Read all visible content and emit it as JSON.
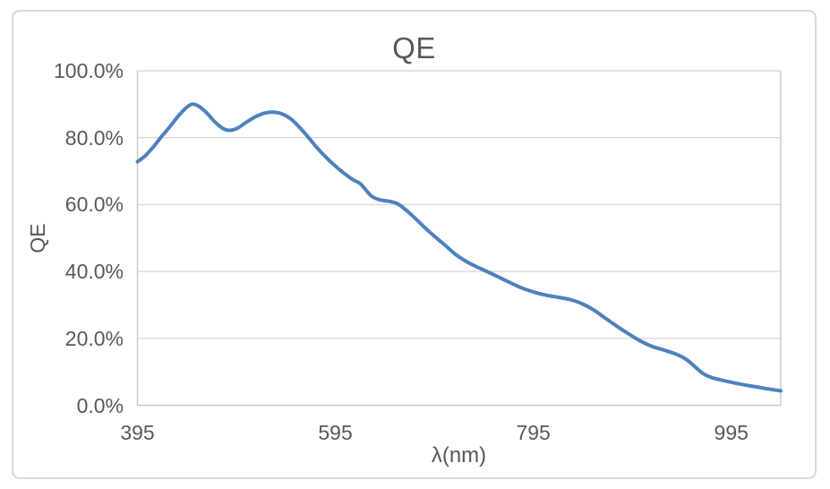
{
  "chart": {
    "title": "QE",
    "colors": {
      "line": "#4E81BD",
      "gridline": "#D9D9D9",
      "axis_line": "#C9C9C9",
      "text": "#595959",
      "frame_border": "#D9D9D9",
      "background": "#FFFFFF"
    },
    "x_axis": {
      "title": "λ(nm)",
      "min": 395,
      "max": 1045,
      "ticks": [
        {
          "value": 395,
          "label": "395"
        },
        {
          "value": 595,
          "label": "595"
        },
        {
          "value": 795,
          "label": "795"
        },
        {
          "value": 995,
          "label": "995"
        }
      ]
    },
    "y_axis": {
      "title": "QE",
      "min": 0,
      "max": 100,
      "ticks": [
        {
          "value": 0,
          "label": "0.0%"
        },
        {
          "value": 20,
          "label": "20.0%"
        },
        {
          "value": 40,
          "label": "40.0%"
        },
        {
          "value": 60,
          "label": "60.0%"
        },
        {
          "value": 80,
          "label": "80.0%"
        },
        {
          "value": 100,
          "label": "100.0%"
        }
      ]
    }
  },
  "chart_data": {
    "type": "line",
    "title": "QE",
    "xlabel": "λ(nm)",
    "ylabel": "QE",
    "xlim": [
      395,
      1045
    ],
    "ylim_percent": [
      0,
      100
    ],
    "grid": "horizontal",
    "legend": "none",
    "line_style": "smooth",
    "markers": false,
    "series": [
      {
        "name": "QE",
        "color": "#4E81BD",
        "x_unit": "nm",
        "y_unit": "percent",
        "points": [
          [
            395,
            72.8
          ],
          [
            403,
            74.6
          ],
          [
            411,
            77.2
          ],
          [
            419,
            80.2
          ],
          [
            427,
            83.0
          ],
          [
            435,
            86.0
          ],
          [
            443,
            88.6
          ],
          [
            450,
            90.0
          ],
          [
            457,
            89.4
          ],
          [
            465,
            87.4
          ],
          [
            473,
            84.8
          ],
          [
            481,
            82.8
          ],
          [
            488,
            82.2
          ],
          [
            496,
            82.8
          ],
          [
            505,
            84.6
          ],
          [
            514,
            86.2
          ],
          [
            523,
            87.3
          ],
          [
            532,
            87.6
          ],
          [
            541,
            87.1
          ],
          [
            550,
            85.6
          ],
          [
            559,
            83.0
          ],
          [
            568,
            80.0
          ],
          [
            577,
            76.8
          ],
          [
            586,
            74.0
          ],
          [
            595,
            71.5
          ],
          [
            604,
            69.3
          ],
          [
            613,
            67.4
          ],
          [
            620,
            66.3
          ],
          [
            626,
            64.3
          ],
          [
            632,
            62.4
          ],
          [
            640,
            61.4
          ],
          [
            649,
            61.0
          ],
          [
            658,
            60.2
          ],
          [
            667,
            58.2
          ],
          [
            676,
            55.8
          ],
          [
            686,
            52.9
          ],
          [
            696,
            50.3
          ],
          [
            706,
            47.8
          ],
          [
            716,
            45.2
          ],
          [
            726,
            43.2
          ],
          [
            737,
            41.5
          ],
          [
            748,
            40.0
          ],
          [
            760,
            38.3
          ],
          [
            772,
            36.6
          ],
          [
            784,
            35.0
          ],
          [
            796,
            33.8
          ],
          [
            808,
            32.9
          ],
          [
            820,
            32.3
          ],
          [
            832,
            31.6
          ],
          [
            844,
            30.4
          ],
          [
            856,
            28.5
          ],
          [
            868,
            26.0
          ],
          [
            880,
            23.5
          ],
          [
            892,
            21.2
          ],
          [
            904,
            19.1
          ],
          [
            916,
            17.5
          ],
          [
            928,
            16.4
          ],
          [
            940,
            15.2
          ],
          [
            950,
            13.6
          ],
          [
            958,
            11.6
          ],
          [
            966,
            9.6
          ],
          [
            974,
            8.4
          ],
          [
            984,
            7.6
          ],
          [
            996,
            6.8
          ],
          [
            1008,
            6.1
          ],
          [
            1020,
            5.5
          ],
          [
            1032,
            4.9
          ],
          [
            1045,
            4.3
          ]
        ]
      }
    ]
  }
}
